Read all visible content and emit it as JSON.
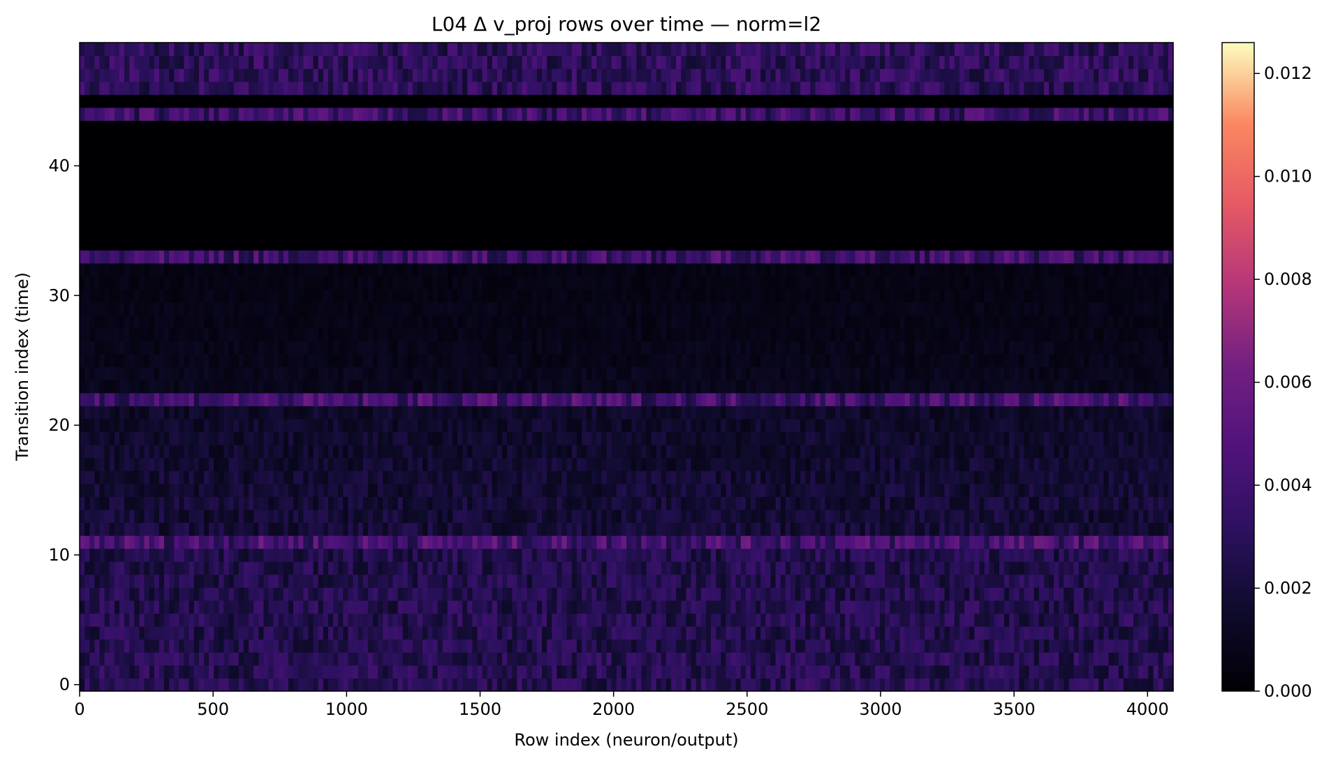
{
  "chart_data": {
    "type": "heatmap",
    "title": "L04 Δ v_proj rows over time — norm=l2",
    "xlabel": "Row index (neuron/output)",
    "ylabel": "Transition index (time)",
    "xlim": [
      0,
      4096
    ],
    "ylim": [
      -0.5,
      49.5
    ],
    "x_ticks": [
      0,
      500,
      1000,
      1500,
      2000,
      2500,
      3000,
      3500,
      4000
    ],
    "y_ticks": [
      0,
      10,
      20,
      30,
      40
    ],
    "colormap": "magma",
    "colorbar": {
      "vmin": 0.0,
      "vmax": 0.0126,
      "ticks": [
        0.0,
        0.002,
        0.004,
        0.006,
        0.008,
        0.01,
        0.012
      ],
      "tick_labels": [
        "0.000",
        "0.002",
        "0.004",
        "0.006",
        "0.008",
        "0.010",
        "0.012"
      ]
    },
    "n_rows": 4096,
    "n_transitions": 50,
    "row_mean_values": [
      0.0027,
      0.0027,
      0.0027,
      0.0026,
      0.0026,
      0.0026,
      0.0026,
      0.0025,
      0.0025,
      0.0025,
      0.0025,
      0.0042,
      0.0019,
      0.0018,
      0.0018,
      0.0017,
      0.0017,
      0.0016,
      0.0015,
      0.0015,
      0.0014,
      0.0014,
      0.004,
      0.0009,
      0.0009,
      0.0008,
      0.0008,
      0.0007,
      0.0007,
      0.0007,
      0.0006,
      0.0006,
      0.0006,
      0.0038,
      0.0,
      0.0,
      0.0,
      0.0,
      0.0,
      0.0,
      0.0,
      0.0,
      0.0,
      0.0,
      0.0037,
      0.0,
      0.0031,
      0.0031,
      0.0031,
      0.0031
    ]
  }
}
